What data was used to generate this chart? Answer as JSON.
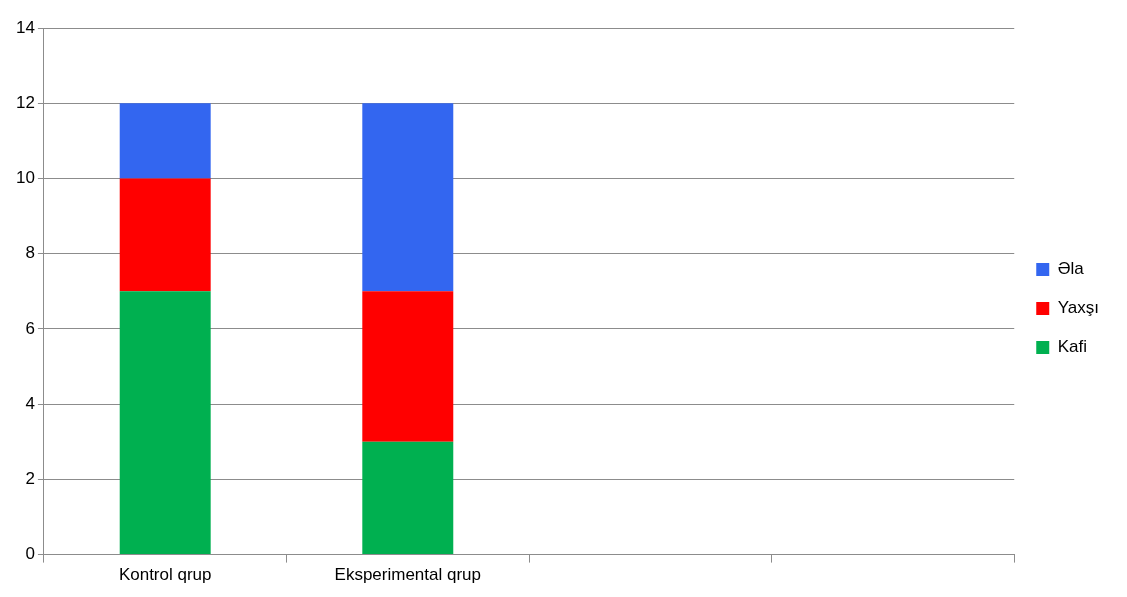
{
  "chart_data": {
    "type": "bar",
    "stacked": true,
    "categories": [
      "Kontrol qrup",
      "Eksperimental qrup",
      null,
      null
    ],
    "series": [
      {
        "name": "Kafi",
        "color": "#00b050",
        "values": [
          7,
          3,
          null,
          null
        ]
      },
      {
        "name": "Yaxşı",
        "color": "#ff0000",
        "values": [
          3,
          4,
          null,
          null
        ]
      },
      {
        "name": "Əla",
        "color": "#3366f0",
        "values": [
          2,
          5,
          null,
          null
        ]
      }
    ],
    "ylim": [
      0,
      14
    ],
    "yticks": [
      0,
      2,
      4,
      6,
      8,
      10,
      12,
      14
    ],
    "grid": "y",
    "legend": "right"
  }
}
